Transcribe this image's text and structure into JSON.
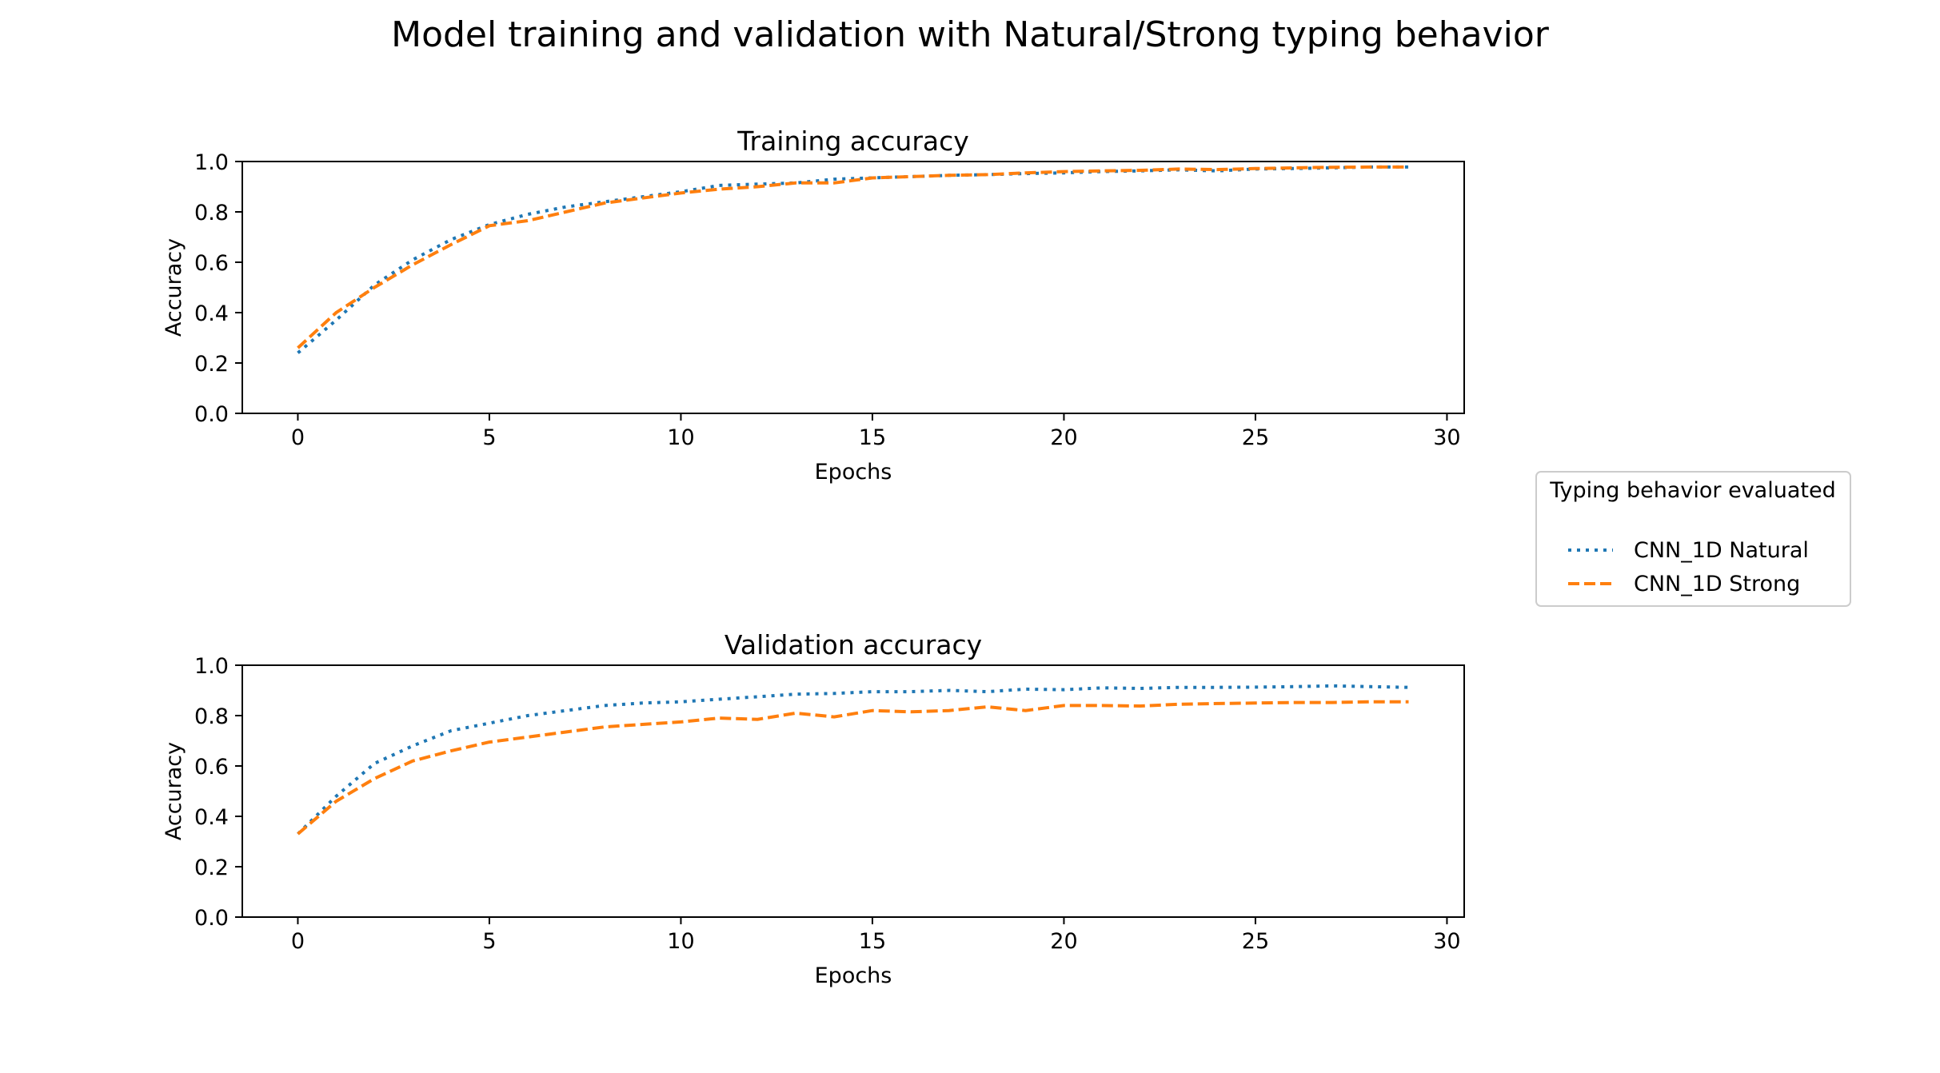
{
  "figure": {
    "suptitle": "Model training and validation with Natural/Strong typing behavior"
  },
  "legend": {
    "title": "Typing behavior evaluated",
    "placement": "right, between subplots",
    "entries": [
      {
        "label": "CNN_1D Natural",
        "color": "#1f77b4",
        "style": "dotted"
      },
      {
        "label": "CNN_1D Strong",
        "color": "#ff7f0e",
        "style": "dashed"
      }
    ]
  },
  "chart_data": [
    {
      "type": "line",
      "title": "Training accuracy",
      "xlabel": "Epochs",
      "ylabel": "Accuracy",
      "xlim": [
        -1.45,
        30.45
      ],
      "ylim": [
        0.0,
        1.0
      ],
      "xticks": [
        0,
        5,
        10,
        15,
        20,
        25,
        30
      ],
      "xtick_labels": [
        "0",
        "5",
        "10",
        "15",
        "20",
        "25",
        "30"
      ],
      "yticks": [
        0.0,
        0.2,
        0.4,
        0.6,
        0.8,
        1.0
      ],
      "ytick_labels": [
        "0.0",
        "0.2",
        "0.4",
        "0.6",
        "0.8",
        "1.0"
      ],
      "grid": false,
      "x": [
        0,
        1,
        2,
        3,
        4,
        5,
        6,
        7,
        8,
        9,
        10,
        11,
        12,
        13,
        14,
        15,
        16,
        17,
        18,
        19,
        20,
        21,
        22,
        23,
        24,
        25,
        26,
        27,
        28,
        29
      ],
      "series": [
        {
          "name": "CNN_1D Natural",
          "color": "#1f77b4",
          "style": "dotted",
          "values": [
            0.24,
            0.37,
            0.51,
            0.61,
            0.69,
            0.75,
            0.79,
            0.82,
            0.84,
            0.86,
            0.88,
            0.905,
            0.91,
            0.915,
            0.93,
            0.935,
            0.94,
            0.945,
            0.948,
            0.952,
            0.955,
            0.96,
            0.963,
            0.967,
            0.963,
            0.97,
            0.972,
            0.975,
            0.978,
            0.978
          ]
        },
        {
          "name": "CNN_1D Strong",
          "color": "#ff7f0e",
          "style": "dashed",
          "values": [
            0.26,
            0.4,
            0.5,
            0.59,
            0.67,
            0.745,
            0.765,
            0.8,
            0.835,
            0.855,
            0.875,
            0.89,
            0.9,
            0.915,
            0.915,
            0.935,
            0.94,
            0.945,
            0.948,
            0.955,
            0.96,
            0.963,
            0.965,
            0.97,
            0.968,
            0.972,
            0.975,
            0.977,
            0.978,
            0.978
          ]
        }
      ]
    },
    {
      "type": "line",
      "title": "Validation accuracy",
      "xlabel": "Epochs",
      "ylabel": "Accuracy",
      "xlim": [
        -1.45,
        30.45
      ],
      "ylim": [
        0.0,
        1.0
      ],
      "xticks": [
        0,
        5,
        10,
        15,
        20,
        25,
        30
      ],
      "xtick_labels": [
        "0",
        "5",
        "10",
        "15",
        "20",
        "25",
        "30"
      ],
      "yticks": [
        0.0,
        0.2,
        0.4,
        0.6,
        0.8,
        1.0
      ],
      "ytick_labels": [
        "0.0",
        "0.2",
        "0.4",
        "0.6",
        "0.8",
        "1.0"
      ],
      "grid": false,
      "x": [
        0,
        1,
        2,
        3,
        4,
        5,
        6,
        7,
        8,
        9,
        10,
        11,
        12,
        13,
        14,
        15,
        16,
        17,
        18,
        19,
        20,
        21,
        22,
        23,
        24,
        25,
        26,
        27,
        28,
        29
      ],
      "series": [
        {
          "name": "CNN_1D Natural",
          "color": "#1f77b4",
          "style": "dotted",
          "values": [
            0.33,
            0.48,
            0.61,
            0.68,
            0.74,
            0.77,
            0.8,
            0.82,
            0.84,
            0.85,
            0.855,
            0.865,
            0.875,
            0.885,
            0.888,
            0.895,
            0.895,
            0.9,
            0.895,
            0.905,
            0.903,
            0.91,
            0.908,
            0.912,
            0.912,
            0.913,
            0.915,
            0.918,
            0.915,
            0.912
          ]
        },
        {
          "name": "CNN_1D Strong",
          "color": "#ff7f0e",
          "style": "dashed",
          "values": [
            0.33,
            0.46,
            0.55,
            0.62,
            0.66,
            0.695,
            0.715,
            0.735,
            0.755,
            0.765,
            0.775,
            0.79,
            0.785,
            0.81,
            0.795,
            0.82,
            0.815,
            0.82,
            0.835,
            0.82,
            0.84,
            0.84,
            0.838,
            0.845,
            0.848,
            0.85,
            0.852,
            0.852,
            0.855,
            0.855
          ]
        }
      ]
    }
  ]
}
